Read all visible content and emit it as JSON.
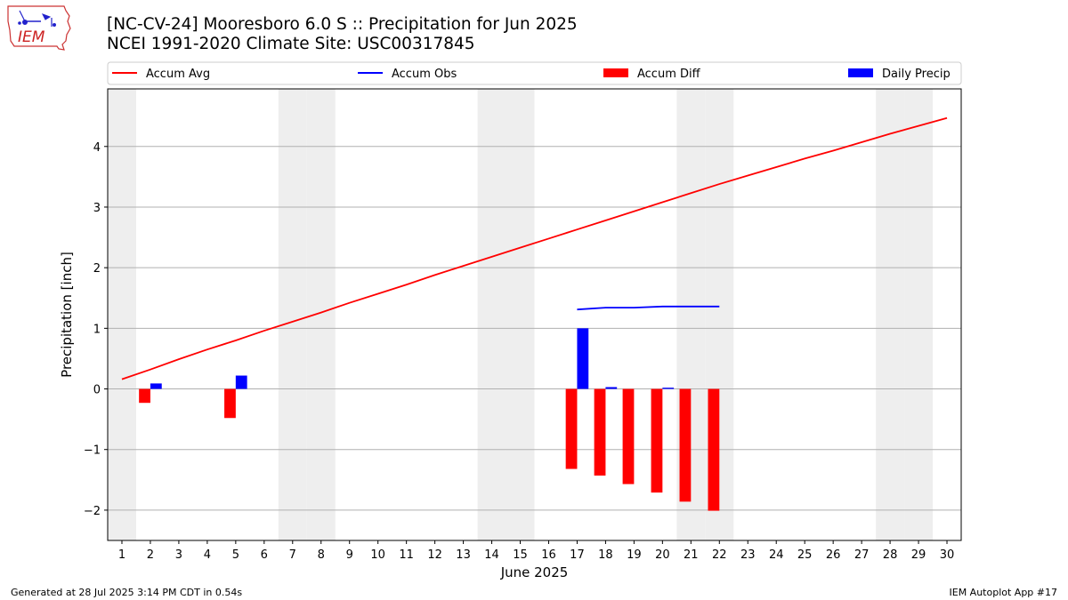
{
  "header": {
    "title": "[NC-CV-24] Mooresboro 6.0 S :: Precipitation for Jun 2025",
    "subtitle": "NCEI 1991-2020 Climate Site: USC00317845",
    "logo_text": "IEM"
  },
  "footer": {
    "generated": "Generated at 28 Jul 2025 3:14 PM CDT in 0.54s",
    "app": "IEM Autoplot App #17"
  },
  "colors": {
    "accum_avg": "#ff0000",
    "accum_obs": "#0000ff",
    "accum_diff": "#ff0000",
    "daily_precip": "#0000ff",
    "weekend_shade": "#eeeeee",
    "grid": "#b0b0b0"
  },
  "chart_data": {
    "type": "bar",
    "xlabel": "June 2025",
    "ylabel": "Precipitation [inch]",
    "xlim": [
      0.5,
      30.5
    ],
    "ylim": [
      -2.5,
      4.95
    ],
    "x_ticks": [
      1,
      2,
      3,
      4,
      5,
      6,
      7,
      8,
      9,
      10,
      11,
      12,
      13,
      14,
      15,
      16,
      17,
      18,
      19,
      20,
      21,
      22,
      23,
      24,
      25,
      26,
      27,
      28,
      29,
      30
    ],
    "y_ticks": [
      -2,
      -1,
      0,
      1,
      2,
      3,
      4
    ],
    "y_tick_labels": [
      "−2",
      "−1",
      "0",
      "1",
      "2",
      "3",
      "4"
    ],
    "grid": "horizontal",
    "legend_position": "top",
    "weekend_days": [
      1,
      7,
      8,
      14,
      15,
      21,
      22,
      28,
      29
    ],
    "series": [
      {
        "name": "Accum Avg",
        "kind": "line",
        "color": "#ff0000",
        "x": [
          1,
          2,
          3,
          4,
          5,
          6,
          7,
          8,
          9,
          10,
          11,
          12,
          13,
          14,
          15,
          16,
          17,
          18,
          19,
          20,
          21,
          22,
          23,
          24,
          25,
          26,
          27,
          28,
          29,
          30
        ],
        "values": [
          0.16,
          0.32,
          0.49,
          0.65,
          0.8,
          0.96,
          1.11,
          1.26,
          1.42,
          1.57,
          1.72,
          1.88,
          2.03,
          2.18,
          2.33,
          2.48,
          2.63,
          2.78,
          2.93,
          3.08,
          3.23,
          3.38,
          3.52,
          3.66,
          3.8,
          3.93,
          4.07,
          4.21,
          4.34,
          4.47
        ]
      },
      {
        "name": "Accum Obs",
        "kind": "line",
        "color": "#0000ff",
        "x": [
          17,
          18,
          19,
          20,
          21,
          22
        ],
        "values": [
          1.31,
          1.34,
          1.34,
          1.36,
          1.36,
          1.36
        ]
      },
      {
        "name": "Accum Diff",
        "kind": "bar",
        "color": "#ff0000",
        "x": [
          2,
          5,
          17,
          18,
          19,
          20,
          21,
          22
        ],
        "values": [
          -0.23,
          -0.48,
          -1.32,
          -1.43,
          -1.57,
          -1.71,
          -1.86,
          -2.01
        ]
      },
      {
        "name": "Daily Precip",
        "kind": "bar",
        "color": "#0000ff",
        "x": [
          2,
          5,
          17,
          18,
          20
        ],
        "values": [
          0.09,
          0.22,
          1.0,
          0.03,
          0.02
        ]
      }
    ]
  }
}
